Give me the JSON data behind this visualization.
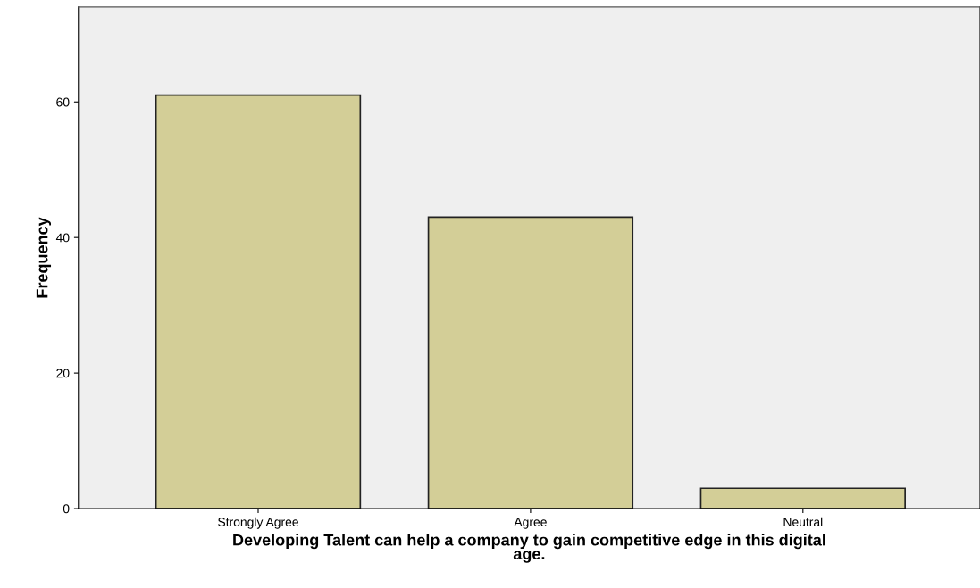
{
  "chart_data": {
    "type": "bar",
    "categories": [
      "Strongly Agree",
      "Agree",
      "Neutral"
    ],
    "values": [
      61,
      43,
      3
    ],
    "color": "#d3ce97",
    "xlabel": "Developing Talent can help a company to gain competitive edge in this digital\nage.",
    "ylabel": "Frequency",
    "ylim": [
      0,
      74
    ],
    "yticks": [
      0,
      20,
      40,
      60
    ],
    "grid": false,
    "legend": false
  }
}
